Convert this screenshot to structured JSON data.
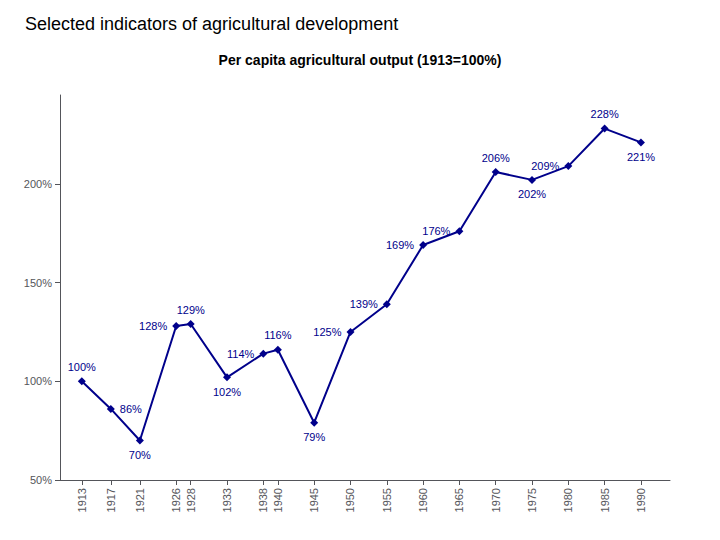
{
  "chart_data": {
    "type": "line",
    "title": "Selected indicators of agricultural development",
    "subtitle": "Per capita agricultural output (1913=100%)",
    "x": [
      1913,
      1917,
      1921,
      1926,
      1928,
      1933,
      1938,
      1940,
      1945,
      1950,
      1955,
      1960,
      1965,
      1970,
      1975,
      1980,
      1985,
      1990
    ],
    "values": [
      100,
      86,
      70,
      128,
      129,
      102,
      114,
      116,
      79,
      125,
      139,
      169,
      176,
      206,
      202,
      209,
      228,
      221
    ],
    "value_labels": [
      "100%",
      "86%",
      "70%",
      "128%",
      "129%",
      "102%",
      "114%",
      "116%",
      "79%",
      "125%",
      "139%",
      "169%",
      "176%",
      "206%",
      "202%",
      "209%",
      "228%",
      "221%"
    ],
    "color": "#00008B",
    "marker": "diamond",
    "line_style": "solid",
    "xlim": [
      1910,
      1994
    ],
    "xticks": [
      1913,
      1917,
      1921,
      1926,
      1928,
      1933,
      1938,
      1940,
      1945,
      1950,
      1955,
      1960,
      1965,
      1970,
      1975,
      1980,
      1985,
      1990
    ],
    "ylim": [
      50,
      245
    ],
    "yticks": [
      {
        "value": 50,
        "label": "50%"
      },
      {
        "value": 100,
        "label": "100%"
      },
      {
        "value": 150,
        "label": "150%"
      },
      {
        "value": 200,
        "label": "200%"
      }
    ],
    "grid": false,
    "data_labels": true
  }
}
